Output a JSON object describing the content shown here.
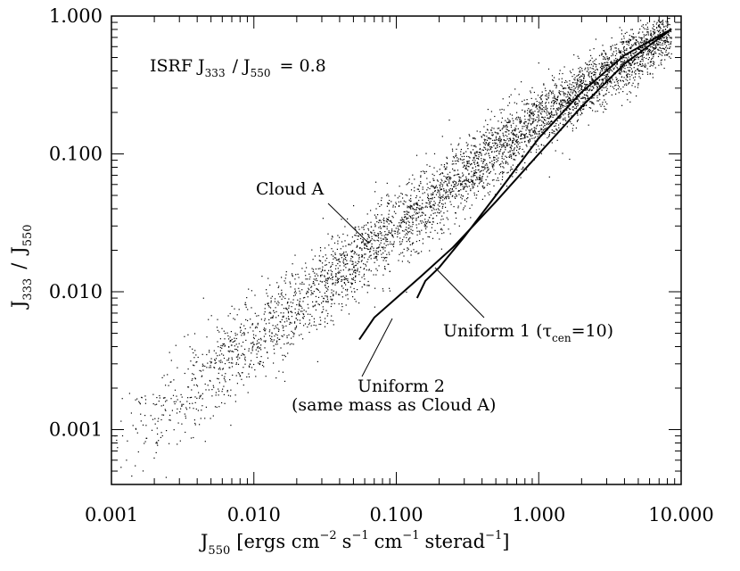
{
  "chart_data": {
    "type": "scatter",
    "x_scale": "log",
    "y_scale": "log",
    "xlim": [
      0.001,
      10.0
    ],
    "ylim": [
      0.0004,
      1.0
    ],
    "x_ticks": [
      0.001,
      0.01,
      0.1,
      1.0,
      10.0
    ],
    "x_tick_labels": [
      "0.001",
      "0.010",
      "0.100",
      "1.000",
      "10.000"
    ],
    "y_ticks": [
      0.001,
      0.01,
      0.1,
      1.0
    ],
    "y_tick_labels": [
      "0.001",
      "0.010",
      "0.100",
      "1.000"
    ],
    "xlabel": {
      "main": "J",
      "sub": "550",
      "rest": "[ergs cm",
      "exp1": "−2",
      "mid1": "s",
      "exp2": "−1",
      "mid2": "cm",
      "exp3": "−1",
      "mid3": "sterad",
      "exp4": "−1",
      "end": "]"
    },
    "ylabel": {
      "j1": "J",
      "sub1": "333",
      "slash": "/",
      "j2": "J",
      "sub2": "550"
    },
    "grid": false,
    "legend": "none",
    "color": "#000000",
    "isrf_label": {
      "prefix": "ISRF J",
      "sub1": "333",
      "slash": "/ J",
      "sub2": "550",
      "suffix": "= 0.8"
    },
    "annotations": {
      "cloud_a": "Cloud A",
      "uniform1_prefix": "Uniform 1 (τ",
      "uniform1_sub": "cen",
      "uniform1_suffix": "=10)",
      "uniform2_line1": "Uniform 2",
      "uniform2_line2": "(same mass as Cloud A)"
    },
    "series": [
      {
        "trend": {
          "x": [
            0.001,
            0.01,
            0.1,
            1.0,
            8.0
          ],
          "y": [
            0.0007,
            0.0045,
            0.03,
            0.18,
            0.75
          ]
        },
        "x_range": [
          0.001,
          8.5
        ],
        "scatter_dex": 0.18,
        "n_points": 4500
      },
      {
        "x": [
          0.055,
          0.07,
          0.1,
          0.15,
          0.25,
          0.5,
          1.0,
          2.0,
          4.0,
          8.5
        ],
        "y": [
          0.0045,
          0.0065,
          0.009,
          0.013,
          0.021,
          0.045,
          0.1,
          0.22,
          0.45,
          0.8
        ]
      },
      {
        "x": [
          0.14,
          0.16,
          0.2,
          0.3,
          0.5,
          1.0,
          2.0,
          4.0,
          8.5
        ],
        "y": [
          0.009,
          0.012,
          0.015,
          0.025,
          0.05,
          0.13,
          0.28,
          0.52,
          0.8
        ]
      }
    ]
  }
}
